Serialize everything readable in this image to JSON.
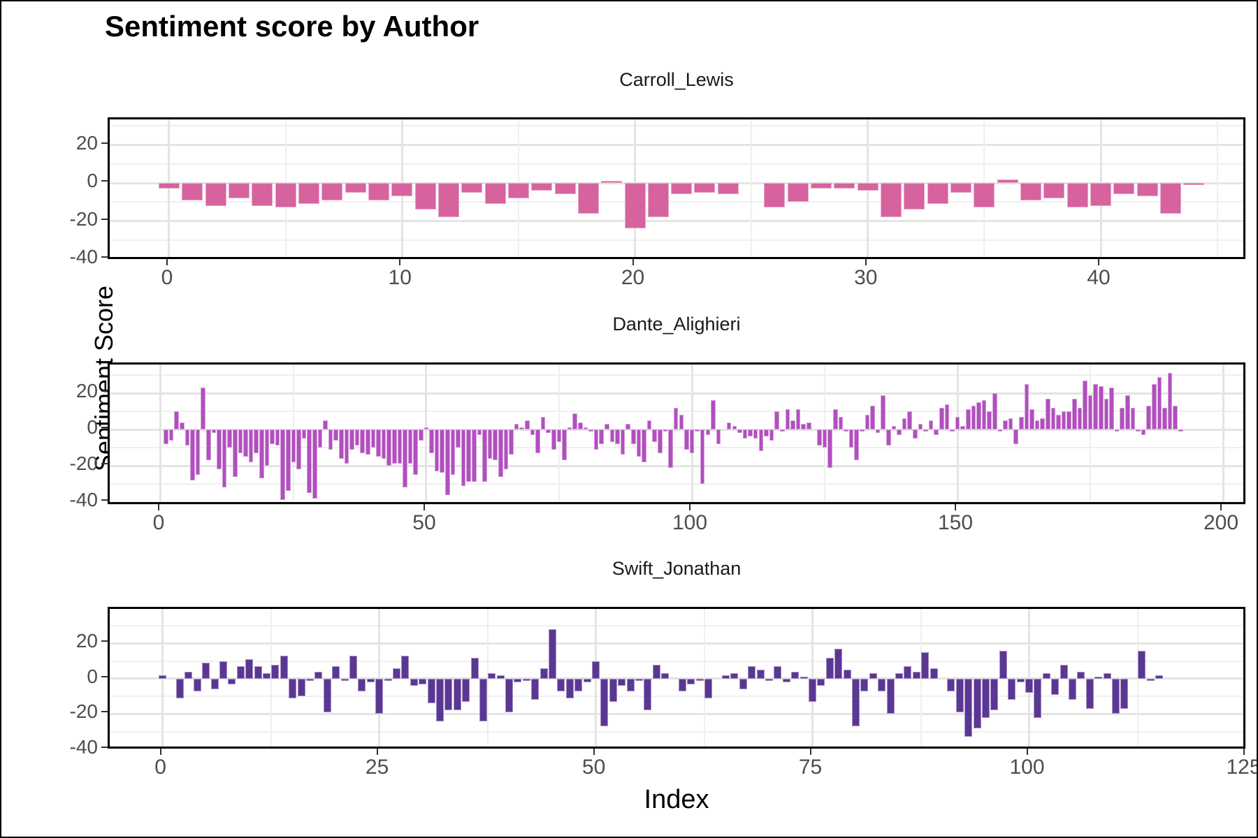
{
  "title": "Sentiment score by Author",
  "y_axis_title": "Sentiment Score",
  "x_axis_title": "Index",
  "colors": {
    "carroll_lewis_bar": "#d6639e",
    "dante_alighieri_bar": "#b14fbe",
    "swift_jonathan_bar": "#5b3794",
    "gridline_major": "#e4e4e4",
    "gridline_minor": "#efefef",
    "tick_label": "#4d4d4d",
    "panel_border": "#000000"
  },
  "chart_data": [
    {
      "type": "bar",
      "title": "Carroll_Lewis",
      "color": "#d6639e",
      "x_start": 0,
      "x_ticks": [
        0,
        10,
        20,
        30,
        40
      ],
      "x_minor_ticks": [
        5,
        15,
        25,
        35,
        45
      ],
      "y_ticks": [
        20,
        0,
        -20,
        -40
      ],
      "y_minor_ticks": [
        30,
        10,
        -10,
        -30
      ],
      "xlim": [
        -2.55,
        46.3
      ],
      "ylim": [
        -41.1,
        33.4
      ],
      "values": [
        -3,
        -9,
        -12,
        -8,
        -12,
        -13,
        -11,
        -9,
        -5,
        -9,
        -7,
        -14,
        -18,
        -5,
        -11,
        -8,
        -4,
        -6,
        -16,
        1,
        -24,
        -18,
        -6,
        -5,
        -6,
        0,
        -13,
        -10,
        -3,
        -3,
        -4,
        -18,
        -14,
        -11,
        -5,
        -13,
        2,
        -9,
        -8,
        -13,
        -12,
        -6,
        -7,
        -16,
        -1
      ]
    },
    {
      "type": "bar",
      "title": "Dante_Alighieri",
      "color": "#b14fbe",
      "x_start": 1,
      "x_ticks": [
        0,
        50,
        100,
        150,
        200
      ],
      "x_minor_ticks": [
        25,
        75,
        125,
        175
      ],
      "y_ticks": [
        20,
        0,
        -20,
        -40
      ],
      "y_minor_ticks": [
        30,
        10,
        -10,
        -30
      ],
      "xlim": [
        -9.6,
        204.6
      ],
      "ylim": [
        -42.3,
        35.8
      ],
      "values": [
        -8,
        -6,
        10,
        4,
        -9,
        -28,
        -25,
        23,
        -17,
        -2,
        -22,
        -32,
        -10,
        -26,
        -13,
        -15,
        -18,
        -13,
        -27,
        -20,
        -8,
        -9,
        -39,
        -34,
        -18,
        -22,
        -5,
        -35,
        -38,
        -10,
        5,
        -11,
        -6,
        -16,
        -19,
        -11,
        -9,
        -13,
        -14,
        -10,
        -15,
        -16,
        -20,
        -19,
        -19,
        -32,
        -19,
        -25,
        -6,
        1,
        -13,
        -23,
        -24,
        -36,
        -25,
        -10,
        -31,
        -29,
        -29,
        -3,
        -29,
        -16,
        -17,
        -26,
        -22,
        -14,
        3,
        1,
        5,
        -3,
        -13,
        7,
        -2,
        -11,
        -7,
        -17,
        1,
        9,
        4,
        1,
        -1,
        -11,
        -8,
        3,
        -7,
        -8,
        -14,
        3,
        -8,
        -15,
        -18,
        5,
        -7,
        -13,
        -1,
        -21,
        12,
        8,
        -11,
        -13,
        -1,
        -30,
        -3,
        16,
        -8,
        0,
        4,
        2,
        -2,
        -5,
        -4,
        -5,
        -12,
        -4,
        -6,
        10,
        -1,
        11,
        5,
        11,
        3,
        4,
        0,
        -9,
        -10,
        -21,
        11,
        7,
        -1,
        -10,
        -17,
        -1,
        8,
        13,
        -2,
        19,
        -9,
        2,
        -3,
        6,
        10,
        -5,
        3,
        -1,
        5,
        -3,
        12,
        14,
        -1,
        7,
        2,
        11,
        13,
        15,
        16,
        10,
        20,
        -1,
        5,
        6,
        -8,
        7,
        25,
        11,
        5,
        6,
        17,
        12,
        8,
        10,
        10,
        17,
        12,
        27,
        19,
        25,
        24,
        17,
        23,
        -1,
        12,
        19,
        12,
        -1,
        -3,
        13,
        25,
        29,
        12,
        31,
        13,
        -1
      ]
    },
    {
      "type": "bar",
      "title": "Swift_Jonathan",
      "color": "#5b3794",
      "x_start": 0,
      "x_ticks": [
        0,
        25,
        50,
        75,
        100,
        125
      ],
      "x_minor_ticks": [
        12.5,
        37.5,
        62.5,
        87.5,
        112.5
      ],
      "y_ticks": [
        20,
        0,
        -20,
        -40
      ],
      "y_minor_ticks": [
        30,
        10,
        -10,
        -30
      ],
      "xlim": [
        -6.1,
        125.2
      ],
      "ylim": [
        -40.8,
        39.6
      ],
      "values": [
        2,
        0,
        -11,
        4,
        -7,
        9,
        -6,
        10,
        -3,
        7,
        11,
        7,
        3,
        8,
        13,
        -11,
        -10,
        -1,
        4,
        -19,
        7,
        -1,
        13,
        -7,
        -2,
        -20,
        -1,
        6,
        13,
        -4,
        -3,
        -14,
        -24,
        -18,
        -18,
        -13,
        12,
        -24,
        3,
        2,
        -19,
        -2,
        -1,
        -12,
        6,
        28,
        -7,
        -11,
        -7,
        -2,
        10,
        -27,
        -13,
        -4,
        -7,
        -1,
        -18,
        8,
        3,
        0,
        -7,
        -3,
        -1,
        -11,
        0,
        2,
        3,
        -6,
        7,
        5,
        -1,
        7,
        -2,
        4,
        1,
        -13,
        -4,
        12,
        17,
        5,
        -27,
        -7,
        3,
        -7,
        -20,
        3,
        7,
        4,
        15,
        6,
        0,
        -7,
        -19,
        -33,
        -28,
        -22,
        -18,
        16,
        -12,
        -2,
        -8,
        -22,
        3,
        -9,
        8,
        -12,
        4,
        -17,
        1,
        3,
        -20,
        -17,
        0,
        16,
        -1,
        2
      ]
    }
  ]
}
